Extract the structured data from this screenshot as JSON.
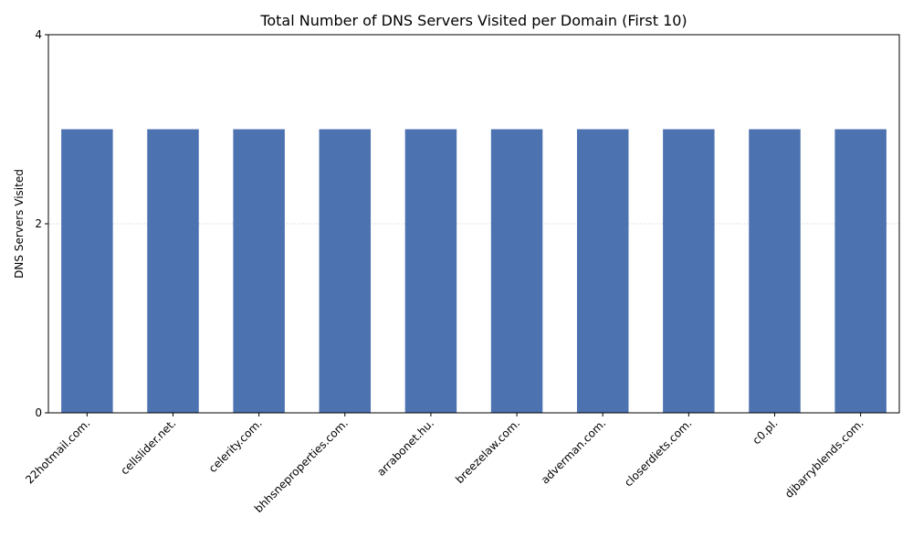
{
  "chart_data": {
    "type": "bar",
    "title": "Total Number of DNS Servers Visited per Domain (First 10)",
    "xlabel": "",
    "ylabel": "DNS Servers Visited",
    "categories": [
      "22hotmail.com.",
      "cellslider.net.",
      "celerity.com.",
      "bhhsneproperties.com.",
      "arrabonet.hu.",
      "breezelaw.com.",
      "adverman.com.",
      "closerdiets.com.",
      "c0.pl.",
      "djbarryblends.com."
    ],
    "values": [
      3,
      3,
      3,
      3,
      3,
      3,
      3,
      3,
      3,
      3
    ],
    "ylim": [
      0,
      4
    ],
    "yticks": [
      0,
      2,
      4
    ],
    "grid": "y-dotted",
    "bar_color": "#4c72b0",
    "grid_color": "#cccccc"
  }
}
